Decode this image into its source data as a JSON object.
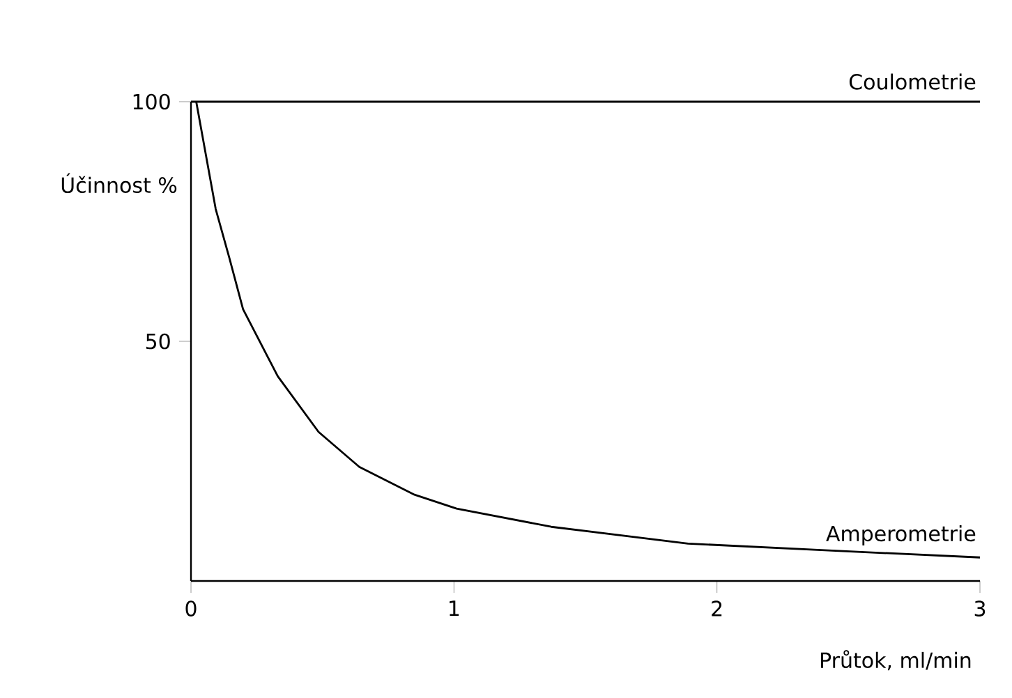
{
  "chart_data": {
    "type": "line",
    "xlabel": "Průtok, ml/min",
    "ylabel": "Účinnost %",
    "xlim": [
      0,
      3
    ],
    "ylim": [
      0,
      100
    ],
    "xticks": [
      0,
      1,
      2,
      3
    ],
    "yticks": [
      50,
      100
    ],
    "series": [
      {
        "name": "Coulometrie",
        "color": "#000000",
        "x": [
          0,
          3
        ],
        "values": [
          100,
          100
        ]
      },
      {
        "name": "Amperometrie",
        "color": "#000000",
        "x": [
          0.02,
          0.094,
          0.146,
          0.198,
          0.33,
          0.485,
          0.64,
          0.85,
          1.01,
          1.37,
          1.89,
          2.41,
          3
        ],
        "values": [
          100,
          77.6,
          67.4,
          56.7,
          42.7,
          31.1,
          23.8,
          18,
          15.1,
          11.3,
          7.8,
          6.4,
          4.9
        ]
      }
    ]
  }
}
